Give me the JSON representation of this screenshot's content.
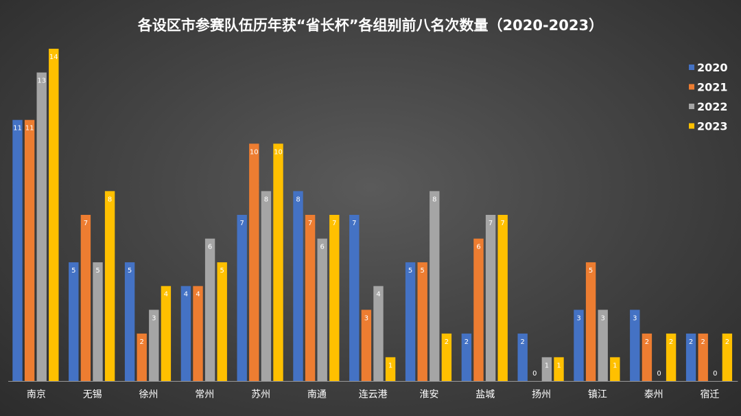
{
  "chart_data": {
    "type": "bar",
    "title": "各设区市参赛队伍历年获“省长杯”各组别前八名次数量（2020-2023）",
    "xlabel": "",
    "ylabel": "",
    "ylim": [
      0,
      14
    ],
    "grid": false,
    "legend_position": "right",
    "categories": [
      "南京",
      "无锡",
      "徐州",
      "常州",
      "苏州",
      "南通",
      "连云港",
      "淮安",
      "盐城",
      "扬州",
      "镇江",
      "泰州",
      "宿迁"
    ],
    "series": [
      {
        "name": "2020",
        "color": "#4472c4",
        "values": [
          11,
          5,
          5,
          4,
          7,
          8,
          7,
          5,
          2,
          2,
          3,
          3,
          2
        ]
      },
      {
        "name": "2021",
        "color": "#ed7d31",
        "values": [
          11,
          7,
          2,
          4,
          10,
          7,
          3,
          5,
          6,
          0,
          5,
          2,
          2
        ]
      },
      {
        "name": "2022",
        "color": "#a5a5a5",
        "values": [
          13,
          5,
          3,
          6,
          8,
          6,
          4,
          8,
          7,
          1,
          3,
          0,
          0
        ]
      },
      {
        "name": "2023",
        "color": "#ffc000",
        "values": [
          14,
          8,
          4,
          5,
          10,
          7,
          1,
          2,
          7,
          1,
          1,
          2,
          2
        ]
      }
    ]
  }
}
